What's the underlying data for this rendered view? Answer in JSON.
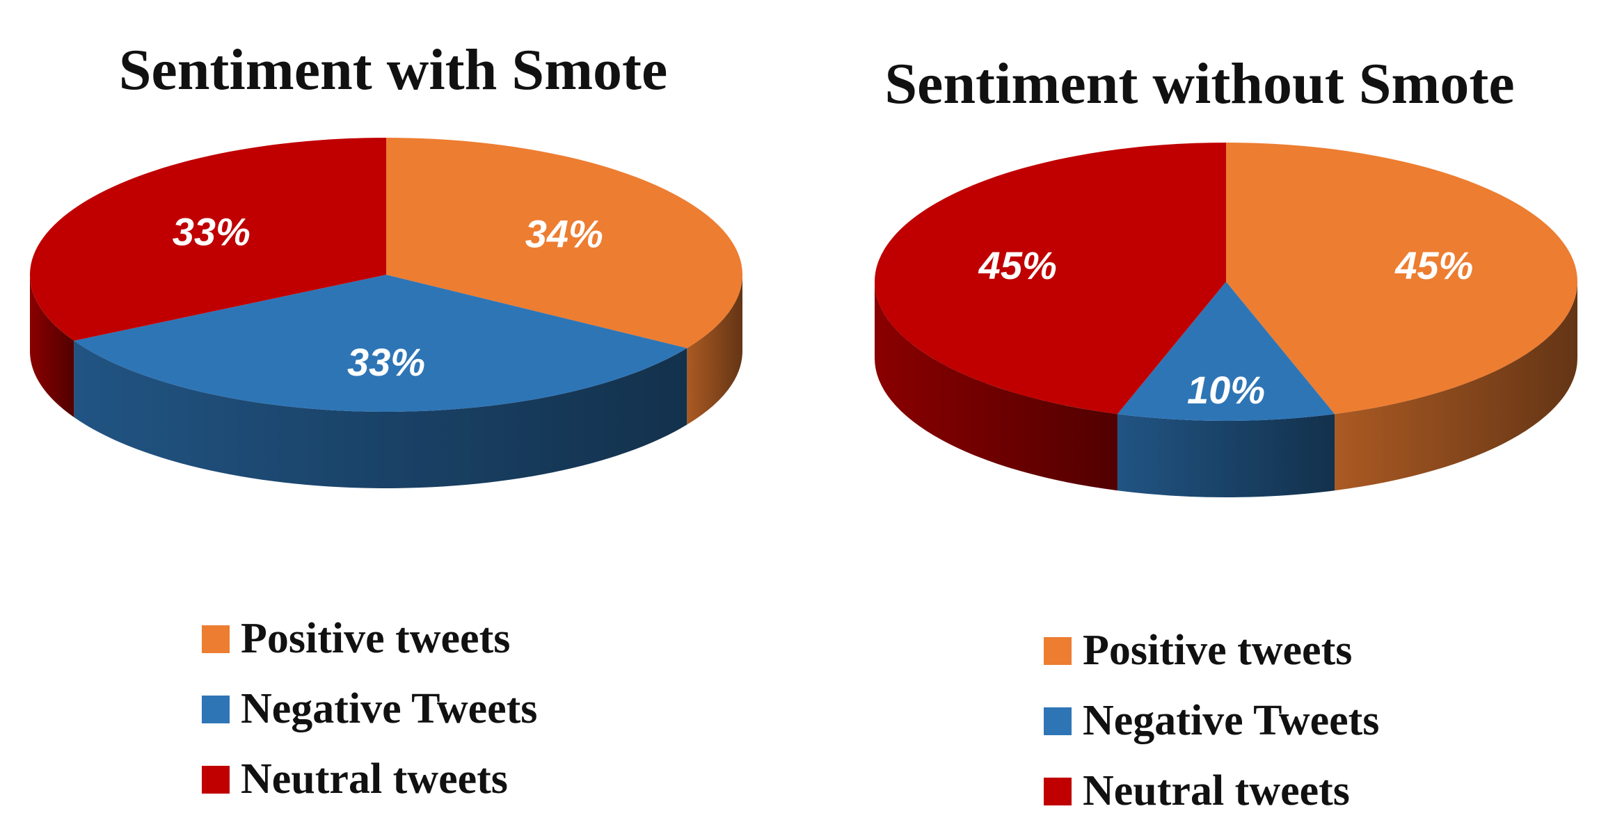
{
  "chart_data": [
    {
      "type": "pie",
      "title": "Sentiment with Smote",
      "categories": [
        "Positive tweets",
        "Negative Tweets",
        "Neutral tweets"
      ],
      "values": [
        34,
        33,
        33
      ],
      "labels": [
        "34%",
        "33%",
        "33%"
      ],
      "colors": [
        "#ed7d31",
        "#2e75b6",
        "#c00000"
      ],
      "legend": "bottom"
    },
    {
      "type": "pie",
      "title": "Sentiment without Smote",
      "categories": [
        "Positive tweets",
        "Negative Tweets",
        "Neutral tweets"
      ],
      "values": [
        45,
        10,
        45
      ],
      "labels": [
        "45%",
        "10%",
        "45%"
      ],
      "colors": [
        "#ed7d31",
        "#2e75b6",
        "#c00000"
      ],
      "legend": "bottom"
    }
  ]
}
